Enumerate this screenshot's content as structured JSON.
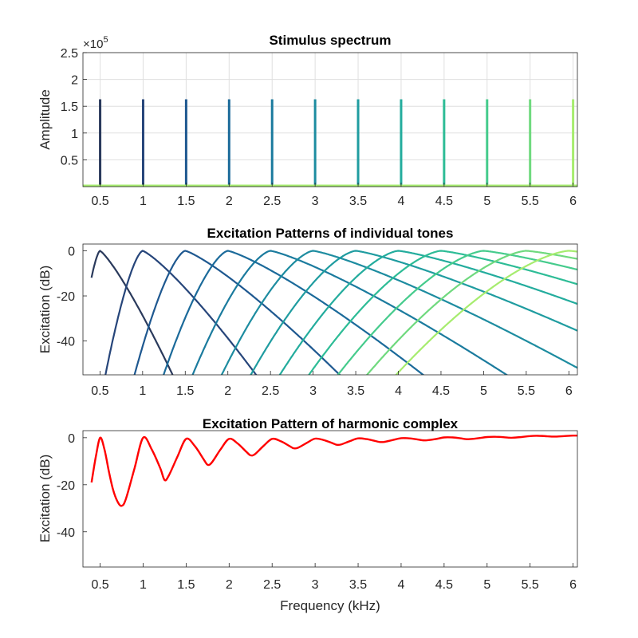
{
  "colors": {
    "grid": "#dfdfdf",
    "axis": "#262626",
    "tones": [
      "#2a3a5c",
      "#26457a",
      "#1e5890",
      "#1b6a9a",
      "#1b7b9e",
      "#1d8ca0",
      "#1f9ca0",
      "#23ac9d",
      "#2dbc96",
      "#45cb8c",
      "#6fd97e",
      "#a6ec6e"
    ],
    "complex": "#ff0000"
  },
  "chart_data": [
    {
      "type": "bar",
      "title": "Stimulus spectrum",
      "xlabel": "",
      "ylabel": "Amplitude",
      "y_exponent_base": "×10",
      "y_exponent_power": "5",
      "xlim": [
        0.3,
        6.05
      ],
      "ylim": [
        0,
        2.5
      ],
      "grid": true,
      "xticks": [
        "0.5",
        "1",
        "1.5",
        "2",
        "2.5",
        "3",
        "3.5",
        "4",
        "4.5",
        "5",
        "5.5",
        "6"
      ],
      "yticks": [
        "0.5",
        "1",
        "1.5",
        "2",
        "2.5"
      ],
      "x": [
        0.5,
        1,
        1.5,
        2,
        2.5,
        3,
        3.5,
        4,
        4.5,
        5,
        5.5,
        6
      ],
      "values": [
        1.63,
        1.63,
        1.63,
        1.63,
        1.63,
        1.63,
        1.63,
        1.63,
        1.63,
        1.63,
        1.63,
        1.63
      ]
    },
    {
      "type": "line",
      "title": "Excitation Patterns of individual tones",
      "xlabel": "",
      "ylabel": "Excitation (dB)",
      "xlim": [
        0.3,
        6.1
      ],
      "ylim": [
        -55,
        3
      ],
      "grid": false,
      "xticks": [
        "0.5",
        "1",
        "1.5",
        "2",
        "2.5",
        "3",
        "3.5",
        "4",
        "4.5",
        "5",
        "5.5",
        "6"
      ],
      "yticks": [
        "0",
        "-20",
        "-40"
      ],
      "x_range": [
        0.4,
        6.1
      ],
      "series": [
        {
          "center": 0.5
        },
        {
          "center": 1
        },
        {
          "center": 1.5
        },
        {
          "center": 2
        },
        {
          "center": 2.5
        },
        {
          "center": 3
        },
        {
          "center": 3.5
        },
        {
          "center": 4
        },
        {
          "center": 4.5
        },
        {
          "center": 5
        },
        {
          "center": 5.5
        },
        {
          "center": 6
        }
      ]
    },
    {
      "type": "line",
      "title": "Excitation Pattern of harmonic complex",
      "xlabel": "Frequency (kHz)",
      "ylabel": "Excitation (dB)",
      "xlim": [
        0.3,
        6.05
      ],
      "ylim": [
        -55,
        3
      ],
      "grid": false,
      "xticks": [
        "0.5",
        "1",
        "1.5",
        "2",
        "2.5",
        "3",
        "3.5",
        "4",
        "4.5",
        "5",
        "5.5",
        "6"
      ],
      "yticks": [
        "0",
        "-20",
        "-40"
      ],
      "x": [
        0.4,
        0.45,
        0.5,
        0.55,
        0.6,
        0.65,
        0.7,
        0.75,
        0.8,
        0.9,
        1.0,
        1.1,
        1.2,
        1.25,
        1.3,
        1.4,
        1.5,
        1.6,
        1.7,
        1.75,
        1.8,
        1.9,
        2.0,
        2.1,
        2.2,
        2.25,
        2.3,
        2.4,
        2.5,
        2.6,
        2.7,
        2.75,
        2.8,
        2.9,
        3.0,
        3.1,
        3.2,
        3.25,
        3.3,
        3.4,
        3.5,
        3.6,
        3.7,
        3.75,
        3.8,
        3.9,
        4.0,
        4.1,
        4.2,
        4.25,
        4.3,
        4.4,
        4.5,
        4.6,
        4.7,
        4.75,
        4.8,
        4.9,
        5.0,
        5.1,
        5.2,
        5.25,
        5.3,
        5.4,
        5.5,
        5.6,
        5.7,
        5.75,
        5.8,
        5.9,
        6.0,
        6.05
      ],
      "y": [
        -19,
        -8,
        0,
        -5,
        -14,
        -22,
        -27,
        -29,
        -26,
        -13,
        0,
        -5,
        -13,
        -18,
        -16,
        -8,
        -0.5,
        -3.5,
        -9,
        -11.5,
        -10.5,
        -5,
        -0.5,
        -2.5,
        -6,
        -7.5,
        -7,
        -3.5,
        -0.5,
        -1.5,
        -3.5,
        -4.5,
        -4.3,
        -2.3,
        -0.4,
        -1,
        -2.3,
        -3,
        -2.9,
        -1.5,
        -0.3,
        -0.6,
        -1.4,
        -1.8,
        -1.8,
        -1,
        -0.2,
        -0.3,
        -0.8,
        -1.1,
        -1.1,
        -0.6,
        0.1,
        0.1,
        -0.3,
        -0.6,
        -0.6,
        -0.2,
        0.3,
        0.4,
        0.2,
        0,
        0,
        0.3,
        0.7,
        0.8,
        0.6,
        0.5,
        0.5,
        0.7,
        0.9,
        0.9
      ]
    }
  ]
}
